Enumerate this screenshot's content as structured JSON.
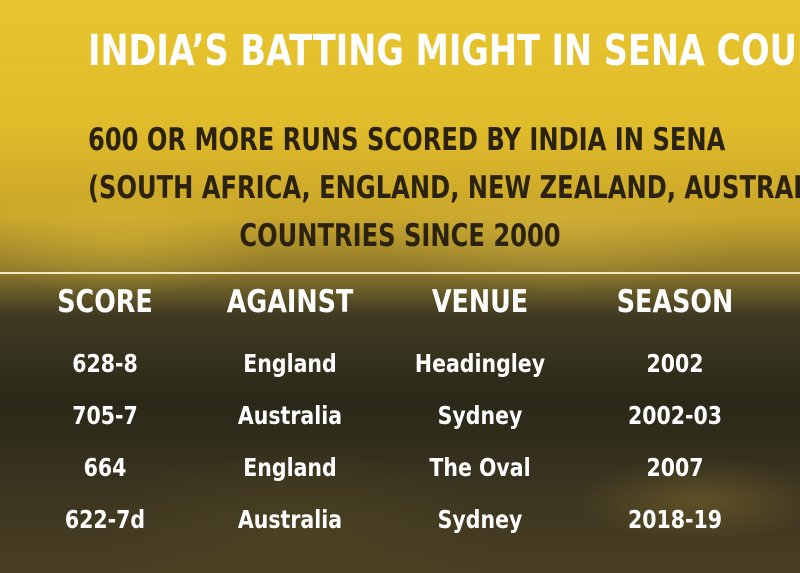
{
  "title": "INDIA’S BATTING MIGHT IN SENA COUNTRIES",
  "subtitle_lines": [
    "600 OR MORE RUNS SCORED BY INDIA IN SENA",
    "(SOUTH AFRICA, ENGLAND, NEW ZEALAND, AUSTRALIA)",
    "COUNTRIES SINCE 2000"
  ],
  "table": {
    "headers": [
      "SCORE",
      "AGAINST",
      "VENUE",
      "SEASON"
    ],
    "rows": [
      [
        "628-8",
        "England",
        "Headingley",
        "2002"
      ],
      [
        "705-7",
        "Australia",
        "Sydney",
        "2002-03"
      ],
      [
        "664",
        "England",
        "The Oval",
        "2007"
      ],
      [
        "622-7d",
        "Australia",
        "Sydney",
        "2018-19"
      ]
    ]
  },
  "colors": {
    "background_top": "#e8c52e",
    "background_bottom": "#2a2818",
    "title_text": "#ffffff",
    "subtitle_text": "#2b2210",
    "table_text": "#ffffff"
  }
}
